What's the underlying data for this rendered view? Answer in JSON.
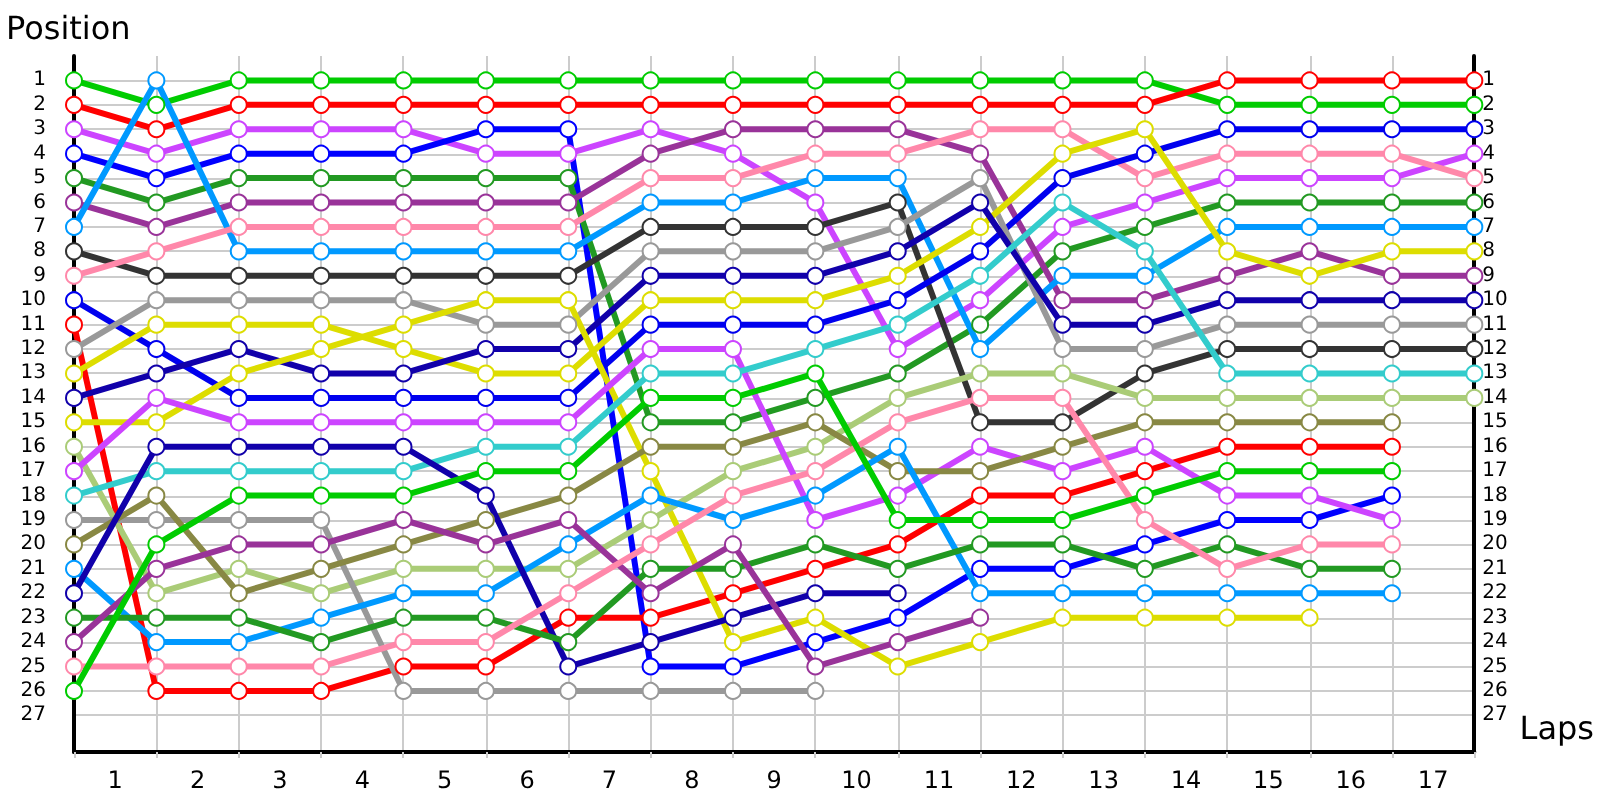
{
  "chart_data": {
    "type": "line",
    "xlabel": "Laps",
    "ylabel": "Position",
    "x": [
      0,
      1,
      2,
      3,
      4,
      5,
      6,
      7,
      8,
      9,
      10,
      11,
      12,
      13,
      14,
      15,
      16,
      17
    ],
    "xlim": [
      0,
      17
    ],
    "xticks": [
      {
        "value": 0,
        "label": null
      },
      {
        "value": 0.5,
        "label": "1"
      },
      {
        "value": 1,
        "label": null
      },
      {
        "value": 1.5,
        "label": "2"
      },
      {
        "value": 2,
        "label": null
      },
      {
        "value": 2.5,
        "label": "3"
      },
      {
        "value": 3,
        "label": null
      },
      {
        "value": 3.5,
        "label": "4"
      },
      {
        "value": 4,
        "label": null
      },
      {
        "value": 4.5,
        "label": "5"
      },
      {
        "value": 5,
        "label": null
      },
      {
        "value": 5.5,
        "label": "6"
      },
      {
        "value": 6,
        "label": null
      },
      {
        "value": 6.5,
        "label": "7"
      },
      {
        "value": 7,
        "label": null
      },
      {
        "value": 7.5,
        "label": "8"
      },
      {
        "value": 8,
        "label": null
      },
      {
        "value": 8.5,
        "label": "9"
      },
      {
        "value": 9,
        "label": null
      },
      {
        "value": 9.5,
        "label": "10"
      },
      {
        "value": 10,
        "label": null
      },
      {
        "value": 10.5,
        "label": "11"
      },
      {
        "value": 11,
        "label": null
      },
      {
        "value": 11.5,
        "label": "12"
      },
      {
        "value": 12,
        "label": null
      },
      {
        "value": 12.5,
        "label": "13"
      },
      {
        "value": 13,
        "label": null
      },
      {
        "value": 13.5,
        "label": "14"
      },
      {
        "value": 14,
        "label": null
      },
      {
        "value": 14.5,
        "label": "15"
      },
      {
        "value": 15,
        "label": null
      },
      {
        "value": 15.5,
        "label": "16"
      },
      {
        "value": 16,
        "label": null
      },
      {
        "value": 16.5,
        "label": "17"
      },
      {
        "value": 17,
        "label": null
      }
    ],
    "ylim": [
      28.5,
      0
    ],
    "yticks": [
      1,
      2,
      3,
      4,
      5,
      6,
      7,
      8,
      9,
      10,
      11,
      12,
      13,
      14,
      15,
      16,
      17,
      18,
      19,
      20,
      21,
      22,
      23,
      24,
      25,
      26,
      27
    ],
    "y2lim": [
      28.5,
      0
    ],
    "y2ticks": [
      1,
      2,
      3,
      4,
      5,
      6,
      7,
      8,
      9,
      10,
      11,
      12,
      13,
      14,
      15,
      16,
      17,
      18,
      19,
      20,
      21,
      22,
      23,
      24,
      25,
      26,
      27
    ],
    "grid": true,
    "marker": "circle",
    "line_style": "solid",
    "series": [
      {
        "color": "#00cc00",
        "values": [
          1,
          2,
          1,
          1,
          1,
          1,
          1,
          1,
          1,
          1,
          1,
          1,
          1,
          1,
          2,
          2,
          2,
          2
        ]
      },
      {
        "color": "#ff0000",
        "values": [
          2,
          3,
          2,
          2,
          2,
          2,
          2,
          2,
          2,
          2,
          2,
          2,
          2,
          2,
          1,
          1,
          1,
          1
        ]
      },
      {
        "color": "#cc44ff",
        "values": [
          3,
          4,
          3,
          3,
          3,
          4,
          4,
          3,
          4,
          6,
          12,
          10,
          7,
          6,
          5,
          5,
          5,
          4
        ]
      },
      {
        "color": "#0000ff",
        "values": [
          4,
          5,
          4,
          4,
          4,
          3,
          3,
          25,
          25,
          24,
          23,
          21,
          21,
          20,
          19,
          19,
          18,
          null
        ]
      },
      {
        "color": "#229922",
        "values": [
          5,
          6,
          5,
          5,
          5,
          5,
          5,
          15,
          15,
          14,
          13,
          11,
          8,
          7,
          6,
          6,
          6,
          6
        ]
      },
      {
        "color": "#993399",
        "values": [
          6,
          7,
          6,
          6,
          6,
          6,
          6,
          4,
          3,
          3,
          3,
          4,
          10,
          10,
          9,
          8,
          9,
          9
        ]
      },
      {
        "color": "#0099ff",
        "values": [
          7,
          1,
          8,
          8,
          8,
          8,
          8,
          6,
          6,
          5,
          5,
          12,
          9,
          9,
          7,
          7,
          7,
          7
        ]
      },
      {
        "color": "#333333",
        "values": [
          8,
          9,
          9,
          9,
          9,
          9,
          9,
          7,
          7,
          7,
          6,
          15,
          15,
          13,
          12,
          12,
          12,
          12
        ]
      },
      {
        "color": "#ff88aa",
        "values": [
          9,
          8,
          7,
          7,
          7,
          7,
          7,
          5,
          5,
          4,
          4,
          3,
          3,
          5,
          4,
          4,
          4,
          5
        ]
      },
      {
        "color": "#0000ee",
        "values": [
          10,
          12,
          14,
          14,
          14,
          14,
          14,
          11,
          11,
          11,
          10,
          8,
          5,
          4,
          3,
          3,
          3,
          3
        ]
      },
      {
        "color": "#ff0000",
        "values": [
          11,
          26,
          26,
          26,
          25,
          25,
          23,
          23,
          22,
          21,
          20,
          18,
          18,
          17,
          16,
          16,
          16,
          null
        ]
      },
      {
        "color": "#999999",
        "values": [
          12,
          10,
          10,
          10,
          10,
          11,
          11,
          8,
          8,
          8,
          7,
          5,
          12,
          12,
          11,
          11,
          11,
          11
        ]
      },
      {
        "color": "#dddd00",
        "values": [
          13,
          11,
          11,
          11,
          12,
          13,
          13,
          10,
          10,
          10,
          9,
          7,
          4,
          3,
          8,
          9,
          8,
          8
        ]
      },
      {
        "color": "#1100aa",
        "values": [
          14,
          13,
          12,
          13,
          13,
          12,
          12,
          9,
          9,
          9,
          8,
          6,
          11,
          11,
          10,
          10,
          10,
          10
        ]
      },
      {
        "color": "#dddd00",
        "values": [
          15,
          15,
          13,
          12,
          11,
          10,
          10,
          17,
          24,
          23,
          25,
          24,
          23,
          23,
          23,
          23,
          null,
          null
        ]
      },
      {
        "color": "#aacc77",
        "values": [
          16,
          22,
          21,
          22,
          21,
          21,
          21,
          19,
          17,
          16,
          14,
          13,
          13,
          14,
          14,
          14,
          14,
          14
        ]
      },
      {
        "color": "#cc44ff",
        "values": [
          17,
          14,
          15,
          15,
          15,
          15,
          15,
          12,
          12,
          19,
          18,
          16,
          17,
          16,
          18,
          18,
          19,
          null
        ]
      },
      {
        "color": "#33cccc",
        "values": [
          18,
          17,
          17,
          17,
          17,
          16,
          16,
          13,
          13,
          12,
          11,
          9,
          6,
          8,
          13,
          13,
          13,
          13
        ]
      },
      {
        "color": "#999999",
        "values": [
          19,
          19,
          19,
          19,
          26,
          26,
          26,
          26,
          26,
          26,
          null,
          null,
          null,
          null,
          null,
          null,
          null,
          null
        ]
      },
      {
        "color": "#888844",
        "values": [
          20,
          18,
          22,
          21,
          20,
          19,
          18,
          16,
          16,
          15,
          17,
          17,
          16,
          15,
          15,
          15,
          15,
          null
        ]
      },
      {
        "color": "#0099ff",
        "values": [
          21,
          24,
          24,
          23,
          22,
          22,
          20,
          18,
          19,
          18,
          16,
          22,
          22,
          22,
          22,
          22,
          22,
          null
        ]
      },
      {
        "color": "#1100aa",
        "values": [
          22,
          16,
          16,
          16,
          16,
          18,
          25,
          24,
          23,
          22,
          22,
          null,
          null,
          null,
          null,
          null,
          null,
          null
        ]
      },
      {
        "color": "#229922",
        "values": [
          23,
          23,
          23,
          24,
          23,
          23,
          24,
          21,
          21,
          20,
          21,
          20,
          20,
          21,
          20,
          21,
          21,
          null
        ]
      },
      {
        "color": "#993399",
        "values": [
          24,
          21,
          20,
          20,
          19,
          20,
          19,
          22,
          20,
          25,
          24,
          23,
          null,
          null,
          null,
          null,
          null,
          null
        ]
      },
      {
        "color": "#ff88aa",
        "values": [
          25,
          25,
          25,
          25,
          24,
          24,
          22,
          20,
          18,
          17,
          15,
          14,
          14,
          19,
          21,
          20,
          20,
          null
        ]
      },
      {
        "color": "#00cc00",
        "values": [
          26,
          20,
          18,
          18,
          18,
          17,
          17,
          14,
          14,
          13,
          19,
          19,
          19,
          18,
          17,
          17,
          17,
          null
        ]
      }
    ]
  }
}
